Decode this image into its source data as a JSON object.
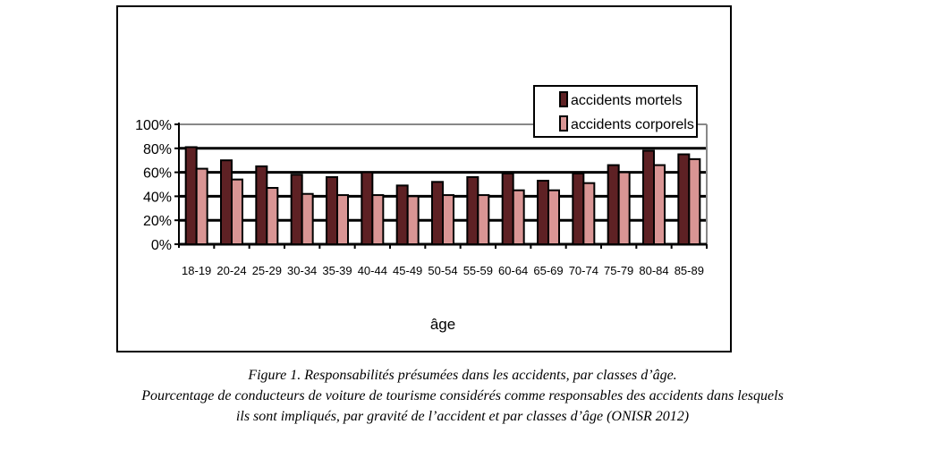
{
  "chart_data": {
    "type": "bar",
    "xlabel": "âge",
    "ylabel": "",
    "ylim": [
      0,
      100
    ],
    "yticks": [
      "0%",
      "20%",
      "40%",
      "60%",
      "80%",
      "100%"
    ],
    "grid": true,
    "legend_position": "top-right",
    "categories": [
      "18-19",
      "20-24",
      "25-29",
      "30-34",
      "35-39",
      "40-44",
      "45-49",
      "50-54",
      "55-59",
      "60-64",
      "65-69",
      "70-74",
      "75-79",
      "80-84",
      "85-89"
    ],
    "series": [
      {
        "name": "accidents mortels",
        "color": "#5e2124",
        "values": [
          81,
          70,
          65,
          58,
          56,
          60,
          49,
          52,
          56,
          59,
          53,
          59,
          66,
          78,
          75
        ]
      },
      {
        "name": "accidents corporels",
        "color": "#d99594",
        "values": [
          63,
          54,
          47,
          42,
          41,
          41,
          40,
          41,
          41,
          45,
          45,
          51,
          60,
          66,
          71
        ]
      }
    ]
  },
  "caption": {
    "line1": "Figure 1. Responsabilités présumées dans les accidents, par classes d’âge.",
    "line2": "Pourcentage de conducteurs de voiture de tourisme considérés comme responsables des accidents dans lesquels",
    "line3": "ils sont impliqués, par gravité de l’accident et par classes d’âge (ONISR 2012)"
  }
}
